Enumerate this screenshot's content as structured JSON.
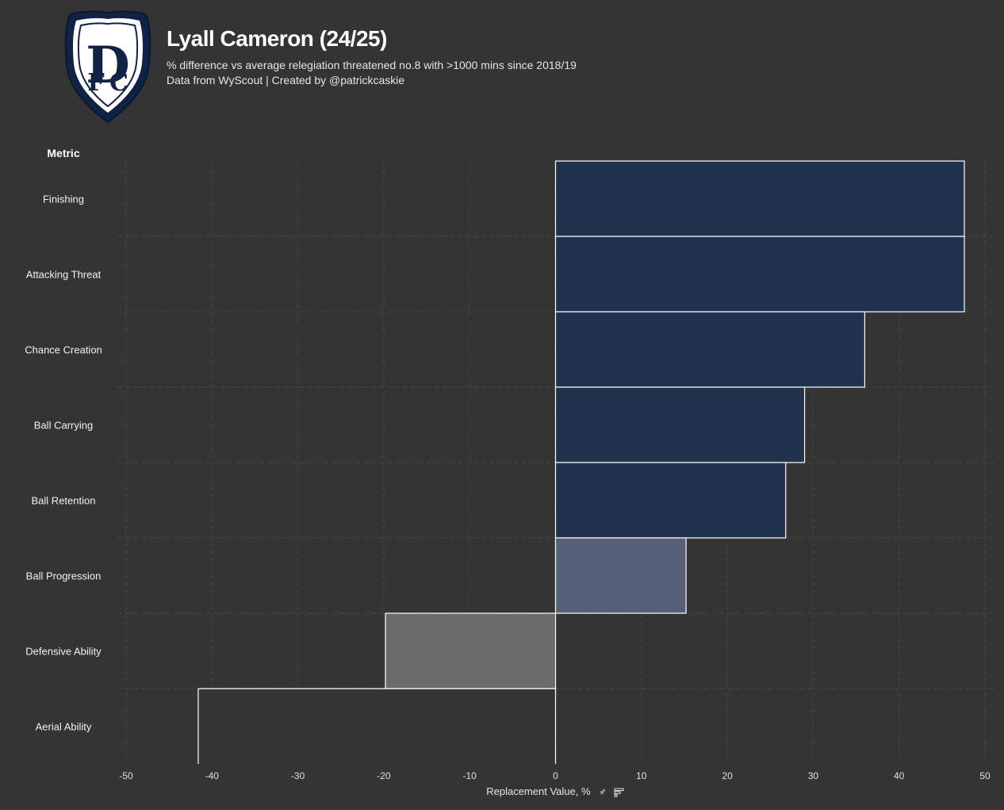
{
  "header": {
    "title": "Lyall Cameron (24/25)",
    "subtitle": "% difference vs average relegiation threatened no.8 with >1000 mins since 2018/19",
    "caption": "Data from WyScout | Created by @patrickcaskie",
    "crest_icon": "dundee-fc-crest-icon",
    "crest_letters": "DFC"
  },
  "chart_data": {
    "type": "bar",
    "orientation": "horizontal",
    "title": "Lyall Cameron (24/25)",
    "category_header": "Metric",
    "categories": [
      "Finishing",
      "Attacking Threat",
      "Chance Creation",
      "Ball Carrying",
      "Ball Retention",
      "Ball Progression",
      "Defensive Ability",
      "Aerial Ability"
    ],
    "values": [
      47.6,
      47.6,
      36.0,
      29.0,
      26.8,
      15.2,
      -19.8,
      -41.6
    ],
    "colors": [
      "#22314d",
      "#22314d",
      "#22314d",
      "#22314d",
      "#22314d",
      "#556177",
      "#6b6b6b",
      "#343434"
    ],
    "xlabel": "Replacement Value, %",
    "xlim": [
      -50,
      50
    ],
    "xticks": [
      -50,
      -40,
      -30,
      -20,
      -10,
      0,
      10,
      20,
      30,
      40,
      50
    ],
    "grid": true,
    "xlabel_icons": [
      "pin-icon",
      "sort-bars-icon"
    ]
  },
  "colors": {
    "background": "#343434",
    "grid": "#3d3d3d",
    "bar_outline": "#ffffff",
    "crest_navy": "#102346"
  }
}
